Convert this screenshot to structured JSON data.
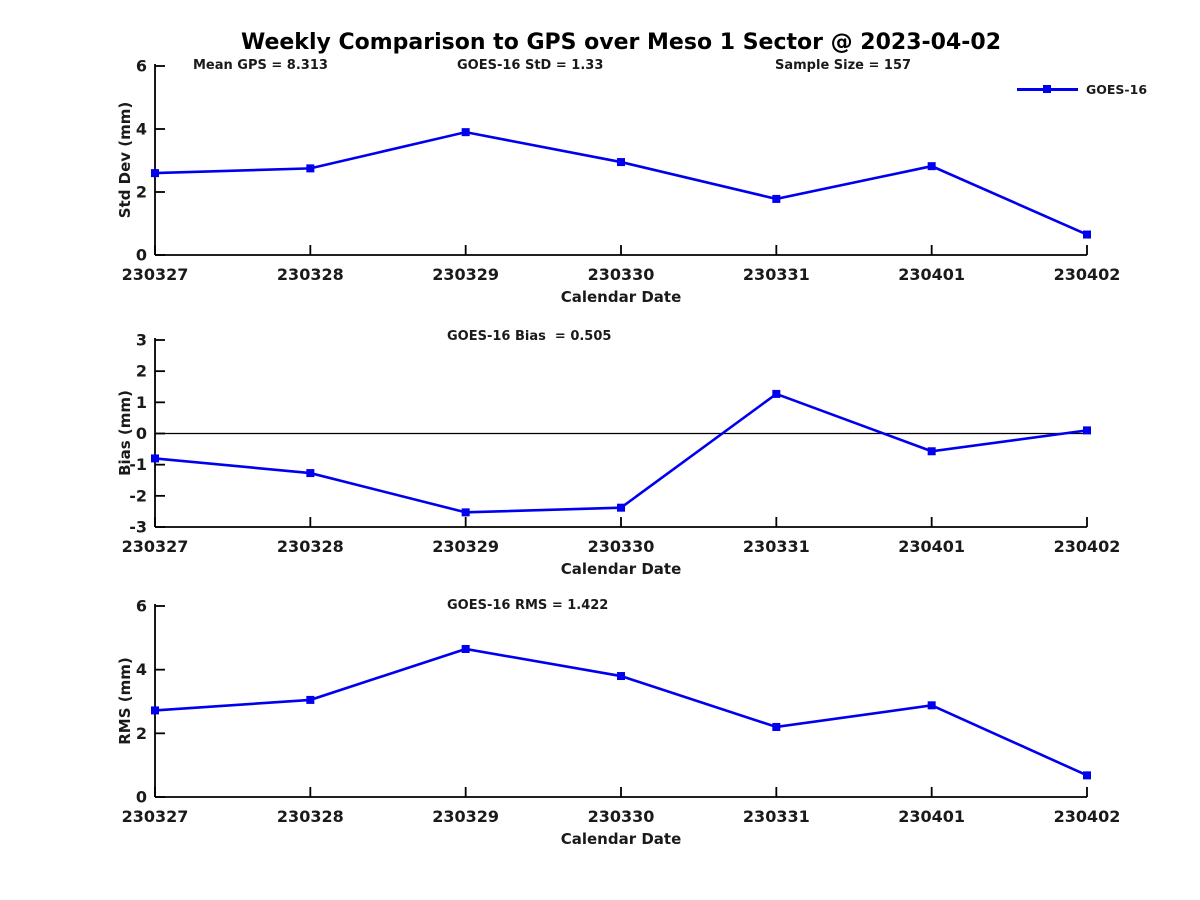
{
  "title": "Weekly Comparison to GPS over Meso 1 Sector @ 2023-04-02",
  "legend": {
    "label": "GOES-16"
  },
  "colors": {
    "line": "#0000EE",
    "text": "#1a1a1a",
    "axis": "#000000",
    "background": "#ffffff"
  },
  "chart_data": [
    {
      "type": "line",
      "xlabel": "Calendar Date",
      "ylabel": "Std Dev (mm)",
      "categories": [
        "230327",
        "230328",
        "230329",
        "230330",
        "230331",
        "230401",
        "230402"
      ],
      "series": [
        {
          "name": "GOES-16",
          "values": [
            2.6,
            2.75,
            3.9,
            2.95,
            1.78,
            2.82,
            0.65
          ]
        }
      ],
      "ylim": [
        0,
        6
      ],
      "yticks": [
        0,
        2,
        4,
        6
      ],
      "grid": false,
      "zero_line": false,
      "legend_position": "top-right",
      "marker": "square",
      "annotations": {
        "mean_gps": "Mean GPS = 8.313",
        "std": "GOES-16 StD = 1.33",
        "sample_size": "Sample Size = 157"
      }
    },
    {
      "type": "line",
      "xlabel": "Calendar Date",
      "ylabel": "Bias (mm)",
      "categories": [
        "230327",
        "230328",
        "230329",
        "230330",
        "230331",
        "230401",
        "230402"
      ],
      "series": [
        {
          "name": "GOES-16",
          "values": [
            -0.8,
            -1.27,
            -2.53,
            -2.38,
            1.27,
            -0.57,
            0.1
          ]
        }
      ],
      "ylim": [
        -3,
        3
      ],
      "yticks": [
        -3,
        -2,
        -1,
        0,
        1,
        2,
        3
      ],
      "grid": false,
      "zero_line": true,
      "legend_position": "none",
      "marker": "square",
      "annotations": {
        "bias": "GOES-16 Bias  = 0.505"
      }
    },
    {
      "type": "line",
      "xlabel": "Calendar Date",
      "ylabel": "RMS (mm)",
      "categories": [
        "230327",
        "230328",
        "230329",
        "230330",
        "230331",
        "230401",
        "230402"
      ],
      "series": [
        {
          "name": "GOES-16",
          "values": [
            2.72,
            3.05,
            4.65,
            3.8,
            2.2,
            2.88,
            0.68
          ]
        }
      ],
      "ylim": [
        0,
        6
      ],
      "yticks": [
        0,
        2,
        4,
        6
      ],
      "grid": false,
      "zero_line": false,
      "legend_position": "none",
      "marker": "square",
      "annotations": {
        "rms": "GOES-16 RMS = 1.422"
      }
    }
  ]
}
